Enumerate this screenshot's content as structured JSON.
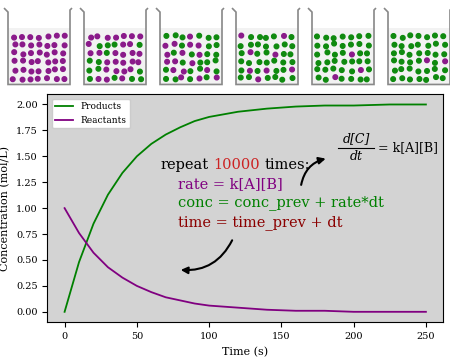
{
  "chart_data": {
    "type": "line",
    "x": [
      0,
      10,
      20,
      30,
      40,
      50,
      60,
      70,
      80,
      90,
      100,
      120,
      140,
      160,
      180,
      200,
      225,
      250
    ],
    "series": [
      {
        "name": "Products",
        "color": "#008000",
        "values": [
          0.0,
          0.48,
          0.85,
          1.13,
          1.34,
          1.5,
          1.62,
          1.71,
          1.78,
          1.84,
          1.88,
          1.93,
          1.96,
          1.98,
          1.99,
          1.99,
          2.0,
          2.0
        ]
      },
      {
        "name": "Reactants",
        "color": "#800080",
        "values": [
          1.0,
          0.76,
          0.57,
          0.43,
          0.33,
          0.25,
          0.19,
          0.14,
          0.11,
          0.08,
          0.06,
          0.04,
          0.02,
          0.01,
          0.01,
          0.0,
          0.0,
          0.0
        ]
      }
    ],
    "xlabel": "Time (s)",
    "ylabel": "Concentration (mol/L)",
    "xlim": [
      -12,
      262
    ],
    "ylim": [
      -0.1,
      2.1
    ],
    "xticks": [
      0,
      50,
      100,
      150,
      200,
      250
    ],
    "yticks": [
      {
        "value": 0,
        "label": "0.00"
      },
      {
        "value": 0.25,
        "label": "0.25"
      },
      {
        "value": 0.5,
        "label": "0.50"
      },
      {
        "value": 0.75,
        "label": "0.75"
      },
      {
        "value": 1.0,
        "label": "1.00"
      },
      {
        "value": 1.25,
        "label": "1.25"
      },
      {
        "value": 1.5,
        "label": "1.50"
      },
      {
        "value": 1.75,
        "label": "1.75"
      },
      {
        "value": 2.0,
        "label": "2.00"
      }
    ],
    "legend": "upper left",
    "annotations": {
      "pseudocode": [
        [
          {
            "text": "repeat",
            "color": "#000000"
          },
          {
            "text": "10000",
            "color": "#cc2222"
          },
          {
            "text": "times:",
            "color": "#000000"
          }
        ],
        [
          {
            "text": "rate = k[A][B]",
            "color": "#800080"
          }
        ],
        [
          {
            "text": "conc = conc_prev + rate*dt",
            "color": "#008000"
          }
        ],
        [
          {
            "text": "time = time_prev + dt",
            "color": "#8b0000"
          }
        ]
      ],
      "equation": {
        "numerator": "d[C]",
        "denominator": "dt",
        "rhs": "= k[A][B]"
      }
    }
  }
}
